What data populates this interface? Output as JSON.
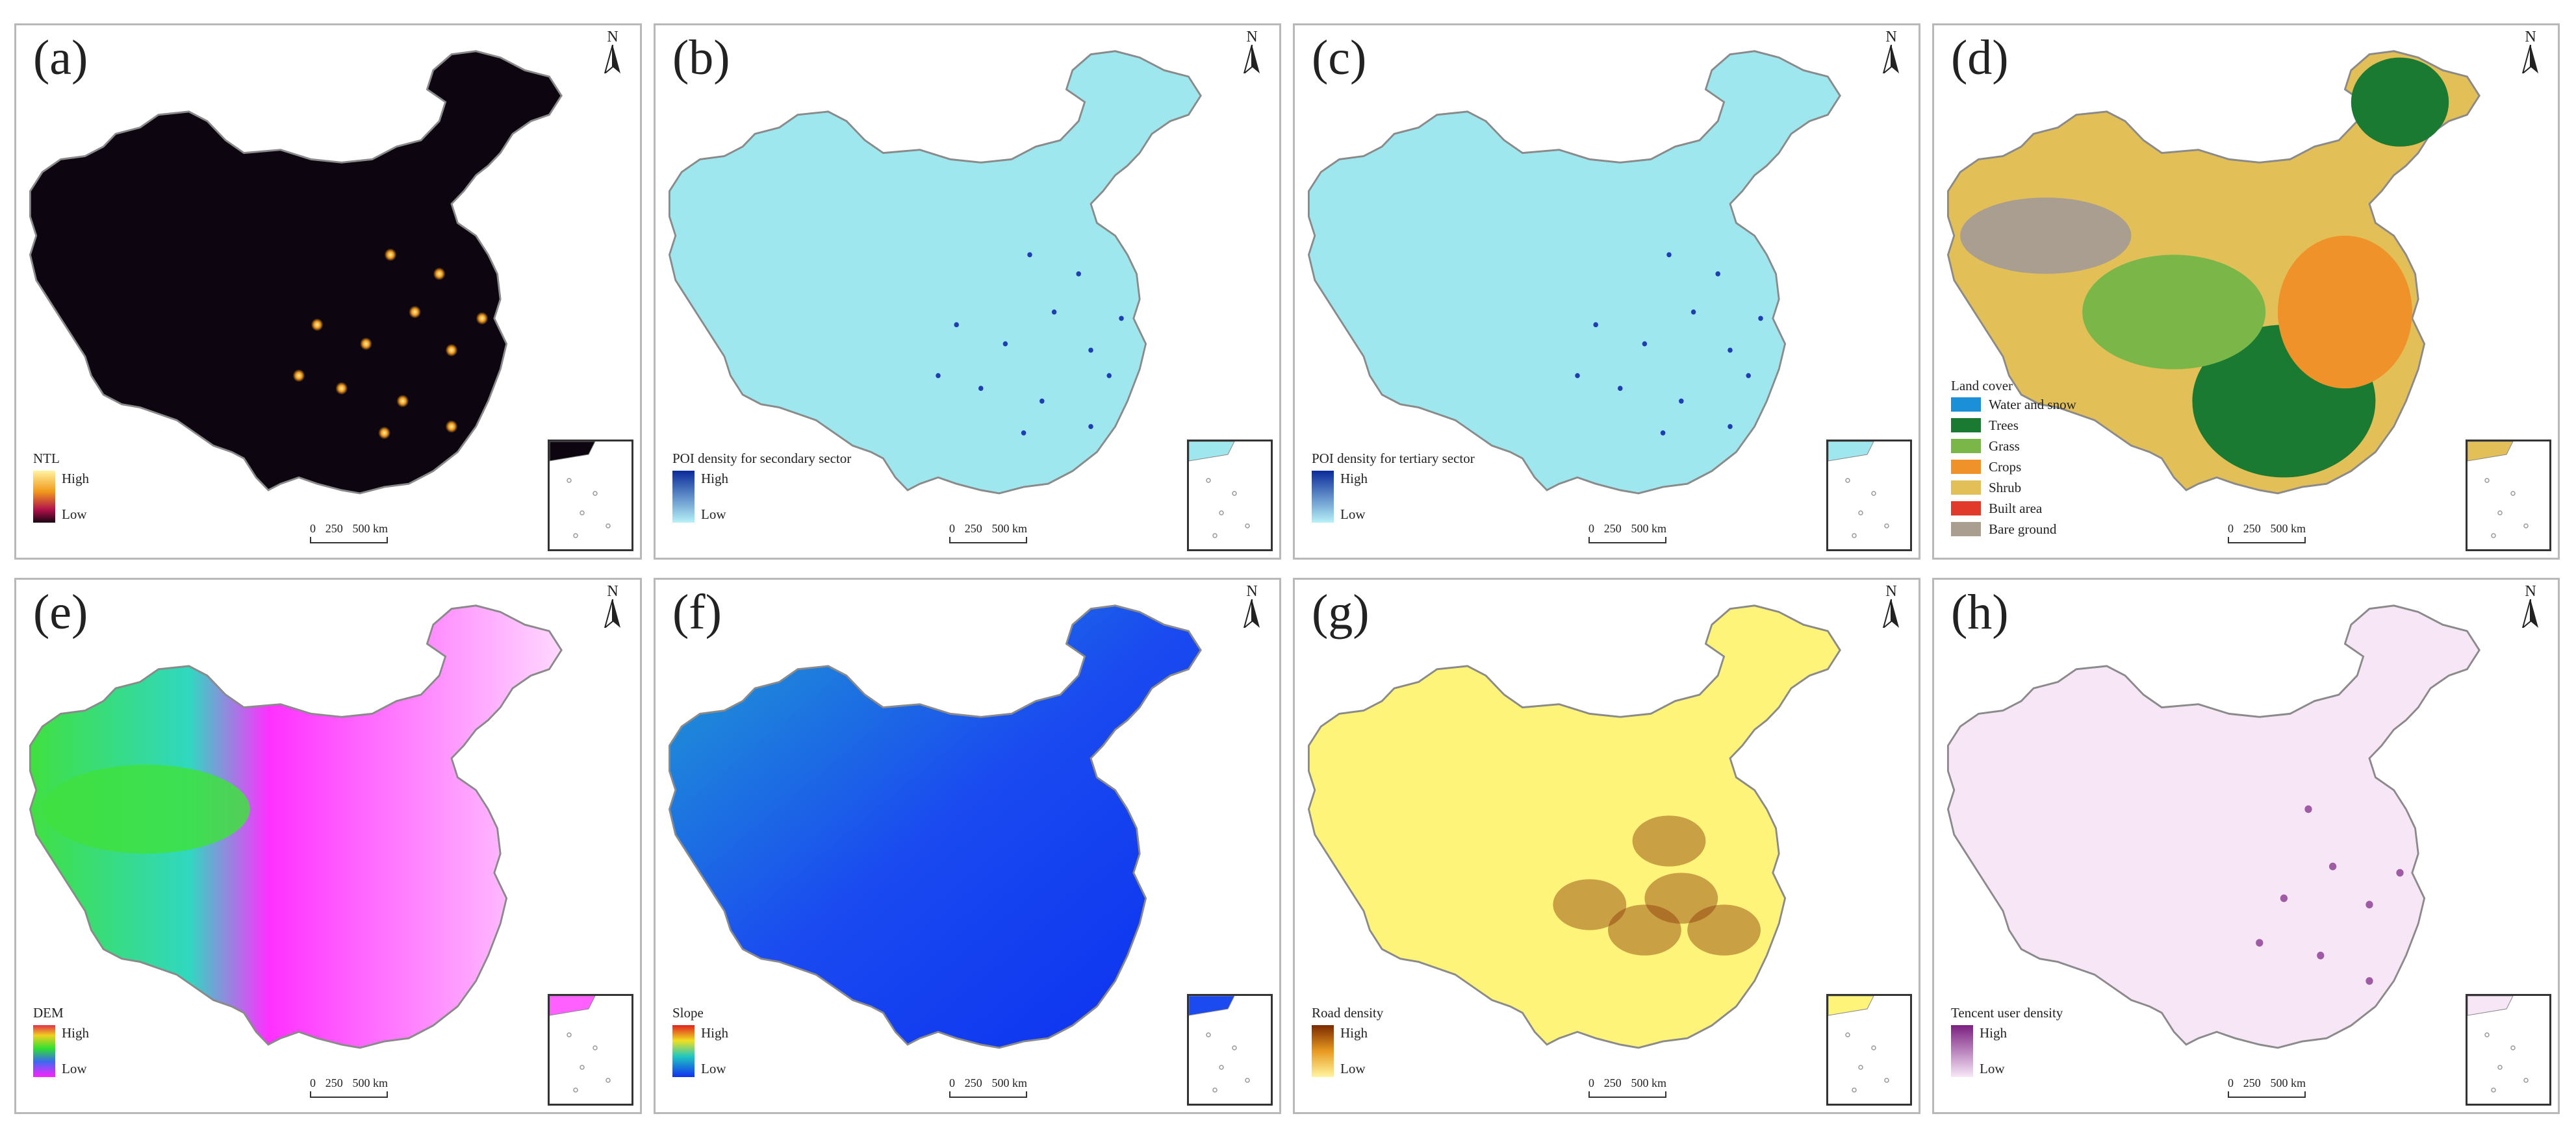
{
  "colors": {
    "ntl_bg": "#0d0610",
    "ntl_light": "#f5a623",
    "poi_bg": "#9fe7ee",
    "poi_dot": "#1f3fb0",
    "water_and_snow": "#1b8fd8",
    "trees": "#1a7a32",
    "grass": "#7ab648",
    "crops": "#f0922a",
    "shrub": "#e3bf58",
    "built_area": "#e23a2a",
    "bare_ground": "#a99e8f",
    "road_low": "#fff47a",
    "road_high": "#8a3a05",
    "tencent_low": "#f6e6f6",
    "tencent_high": "#7a2080"
  },
  "north_label": "N",
  "scale_bar": {
    "n0": "0",
    "n1": "250",
    "n2": "500 km"
  },
  "panels": [
    {
      "label": "(a)",
      "legend_title": "NTL",
      "high": "High",
      "low": "Low",
      "style": "ntl"
    },
    {
      "label": "(b)",
      "legend_title": "POI density for secondary sector",
      "high": "High",
      "low": "Low",
      "style": "poi"
    },
    {
      "label": "(c)",
      "legend_title": "POI density for tertiary sector",
      "high": "High",
      "low": "Low",
      "style": "poi"
    },
    {
      "label": "(d)",
      "legend_title": "Land cover",
      "style": "landcover",
      "classes": [
        "Water and snow",
        "Trees",
        "Grass",
        "Crops",
        "Shrub",
        "Built area",
        "Bare ground"
      ]
    },
    {
      "label": "(e)",
      "legend_title": "DEM",
      "high": "High",
      "low": "Low",
      "style": "dem"
    },
    {
      "label": "(f)",
      "legend_title": "Slope",
      "high": "High",
      "low": "Low",
      "style": "slope"
    },
    {
      "label": "(g)",
      "legend_title": "Road density",
      "high": "High",
      "low": "Low",
      "style": "road"
    },
    {
      "label": "(h)",
      "legend_title": "Tencent user density",
      "high": "High",
      "low": "Low",
      "style": "tencent"
    }
  ]
}
